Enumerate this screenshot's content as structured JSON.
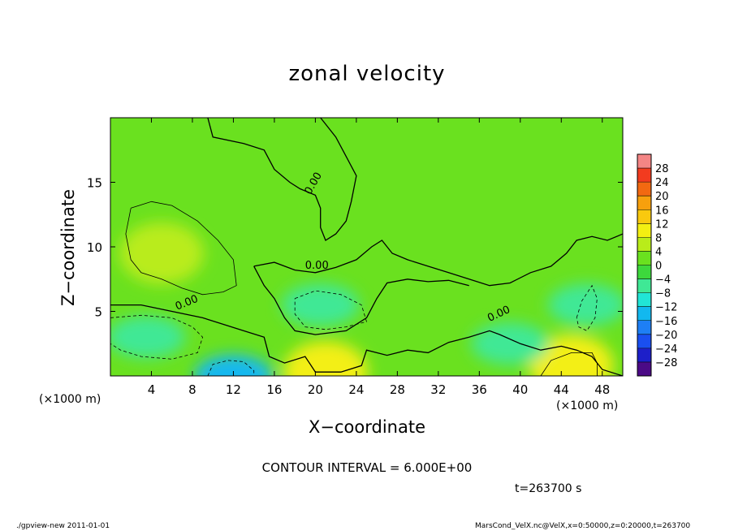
{
  "chart_data": {
    "type": "heatmap",
    "title": "zonal velocity",
    "xlabel": "X−coordinate",
    "ylabel": "Z−coordinate",
    "x_unit": "(×1000 m)",
    "y_unit": "(×1000 m)",
    "xlim": [
      0,
      50
    ],
    "ylim": [
      0,
      20
    ],
    "xticks": [
      4,
      8,
      12,
      16,
      20,
      24,
      28,
      32,
      36,
      40,
      44,
      48
    ],
    "yticks": [
      5,
      10,
      15
    ],
    "contour_interval_text": "CONTOUR INTERVAL = 6.000E+00",
    "contour_label": "0.00",
    "colorbar": {
      "levels": [
        -28,
        -24,
        -20,
        -16,
        -12,
        -8,
        -4,
        0,
        4,
        8,
        12,
        16,
        20,
        24,
        28
      ],
      "colors": [
        "#4b0a86",
        "#1d1fc9",
        "#1a4ff0",
        "#1e7ff5",
        "#12b8ef",
        "#21e5d6",
        "#3fe895",
        "#3dd83c",
        "#6ae11f",
        "#b9ec1a",
        "#f3ef12",
        "#f9c90e",
        "#f7a00d",
        "#f26911",
        "#f23b1f",
        "#f48585"
      ]
    },
    "features": [
      {
        "label": "positive",
        "x": 5,
        "z": 9.5,
        "value": 7
      },
      {
        "label": "positive",
        "x": 21,
        "z": 0.3,
        "value": 10
      },
      {
        "label": "positive",
        "x": 45,
        "z": 0.8,
        "value": 8
      },
      {
        "label": "negative",
        "x": 3.5,
        "z": 3,
        "value": -8
      },
      {
        "label": "negative",
        "x": 20.5,
        "z": 5.5,
        "value": -7
      },
      {
        "label": "negative",
        "x": 12,
        "z": 0,
        "value": -16
      },
      {
        "label": "negative",
        "x": 46.5,
        "z": 5.5,
        "value": -5
      },
      {
        "label": "negative",
        "x": 39,
        "z": 2.5,
        "value": -5
      }
    ]
  },
  "time_text": "t=263700 s",
  "footer_left": "./gpview-new   2011-01-01",
  "footer_right": "MarsCond_VelX.nc@VelX,x=0:50000,z=0:20000,t=263700"
}
